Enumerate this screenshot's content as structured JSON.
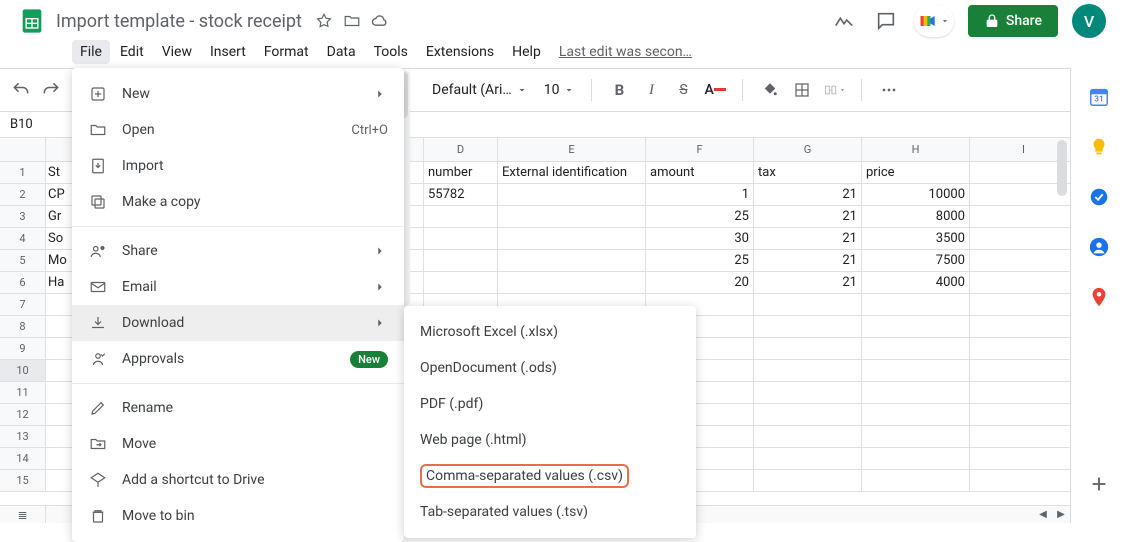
{
  "doc": {
    "title": "Import template - stock receipt",
    "last_edit": "Last edit was secon…"
  },
  "header": {
    "share_label": "Share",
    "avatar_initial": "V"
  },
  "menubar": [
    "File",
    "Edit",
    "View",
    "Insert",
    "Format",
    "Data",
    "Tools",
    "Extensions",
    "Help"
  ],
  "menubar_active_index": 0,
  "toolbar": {
    "font": "Default (Ari…",
    "size": "10"
  },
  "namebox": "B10",
  "columns": [
    {
      "letter": "D",
      "class": "c-D"
    },
    {
      "letter": "E",
      "class": "c-E"
    },
    {
      "letter": "F",
      "class": "c-F"
    },
    {
      "letter": "G",
      "class": "c-G"
    },
    {
      "letter": "H",
      "class": "c-H"
    },
    {
      "letter": "I",
      "class": "c-I"
    }
  ],
  "partialColA": [
    "St",
    "CP",
    "Gr",
    "So",
    "Mo",
    "Ha"
  ],
  "rows_header": {
    "D": "number",
    "E": "External identification",
    "F": "amount",
    "G": "tax",
    "H": "price",
    "I": ""
  },
  "data_rows": [
    {
      "D": "55782",
      "E": "",
      "F": "1",
      "G": "21",
      "H": "10000",
      "I": ""
    },
    {
      "D": "",
      "E": "",
      "F": "25",
      "G": "21",
      "H": "8000",
      "I": ""
    },
    {
      "D": "",
      "E": "",
      "F": "30",
      "G": "21",
      "H": "3500",
      "I": ""
    },
    {
      "D": "",
      "E": "",
      "F": "25",
      "G": "21",
      "H": "7500",
      "I": ""
    },
    {
      "D": "",
      "E": "",
      "F": "20",
      "G": "21",
      "H": "4000",
      "I": ""
    }
  ],
  "row_count_visible": 15,
  "selected_row": 10,
  "file_menu": [
    {
      "icon": "plus-box",
      "label": "New",
      "arrow": true
    },
    {
      "icon": "folder",
      "label": "Open",
      "hint": "Ctrl+O"
    },
    {
      "icon": "import",
      "label": "Import"
    },
    {
      "icon": "copy",
      "label": "Make a copy"
    },
    {
      "sep": true
    },
    {
      "icon": "share",
      "label": "Share",
      "arrow": true
    },
    {
      "icon": "mail",
      "label": "Email",
      "arrow": true
    },
    {
      "icon": "download",
      "label": "Download",
      "arrow": true,
      "active": true
    },
    {
      "icon": "approval",
      "label": "Approvals",
      "badge": "New"
    },
    {
      "sep": true
    },
    {
      "icon": "rename",
      "label": "Rename"
    },
    {
      "icon": "move",
      "label": "Move"
    },
    {
      "icon": "shortcut",
      "label": "Add a shortcut to Drive"
    },
    {
      "icon": "trash",
      "label": "Move to bin"
    }
  ],
  "download_menu": [
    {
      "label": "Microsoft Excel (.xlsx)"
    },
    {
      "label": "OpenDocument (.ods)"
    },
    {
      "label": "PDF (.pdf)"
    },
    {
      "label": "Web page (.html)"
    },
    {
      "label": "Comma-separated values (.csv)",
      "highlight": true
    },
    {
      "label": "Tab-separated values (.tsv)"
    }
  ],
  "colors": {
    "accent": "#188038",
    "highlight_border": "#e86d4c",
    "avatar_bg": "#00897b"
  }
}
